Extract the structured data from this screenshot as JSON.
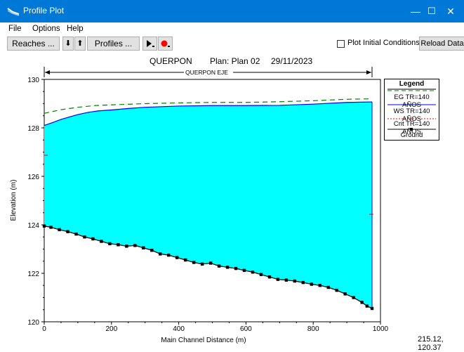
{
  "window": {
    "title": "Profile Plot",
    "minimize": "—",
    "maximize": "☐",
    "close": "✕",
    "accent": "#0078d7"
  },
  "menu": [
    "File",
    "Options",
    "Help"
  ],
  "toolbar": {
    "reaches": "Reaches ...",
    "down_arrow": "⬇",
    "up_arrow": "⬆",
    "profiles": "Profiles ...",
    "play_icon": "play-icon",
    "record_icon": "record-icon",
    "plot_initial_conditions": "Plot Initial Conditions",
    "plot_initial_conditions_checked": false,
    "reload_data": "Reload Data"
  },
  "plot": {
    "header_river": "QUERPON",
    "header_plan": "Plan: Plan 02",
    "header_date": "29/11/2023",
    "reach_label": "QUERPON EJE",
    "xlabel": "Main Channel Distance (m)",
    "ylabel": "Elevation (m)"
  },
  "legend": {
    "title": "Legend",
    "items": [
      "EG  TR=140 AÑOS",
      "WS  TR=140 AÑOS",
      "Crit  TR=140 AÑOS",
      "Ground"
    ]
  },
  "status": {
    "coordinates": "215.12, 120.37"
  },
  "chart_data": {
    "type": "area",
    "xlim": [
      0,
      1000
    ],
    "ylim": [
      120,
      130
    ],
    "xticks": [
      0,
      200,
      400,
      600,
      800,
      1000
    ],
    "yticks": [
      120,
      122,
      124,
      126,
      128,
      130
    ],
    "colors": {
      "ws_fill": "#00ffff",
      "ws_line": "#0000ff",
      "eg_line": "#008000",
      "crit_line": "#ff0000",
      "ground": "#000000"
    },
    "series": [
      {
        "name": "EG  TR=140 AÑOS",
        "style": "dashed",
        "x": [
          0,
          50,
          100,
          150,
          200,
          300,
          400,
          500,
          600,
          700,
          800,
          900,
          975
        ],
        "y": [
          128.6,
          128.75,
          128.85,
          128.92,
          128.95,
          129.0,
          129.03,
          129.05,
          129.05,
          129.08,
          129.12,
          129.18,
          129.2
        ]
      },
      {
        "name": "WS  TR=140 AÑOS",
        "style": "solid",
        "x": [
          0,
          25,
          50,
          75,
          100,
          130,
          160,
          200,
          250,
          300,
          400,
          500,
          600,
          700,
          800,
          900,
          975
        ],
        "y": [
          128.1,
          128.22,
          128.35,
          128.45,
          128.55,
          128.64,
          128.7,
          128.74,
          128.8,
          128.85,
          128.9,
          128.92,
          128.92,
          128.93,
          128.98,
          129.05,
          129.07
        ]
      },
      {
        "name": "Ground",
        "style": "solid-markers",
        "x": [
          0,
          20,
          45,
          70,
          95,
          120,
          145,
          170,
          195,
          220,
          245,
          270,
          295,
          320,
          345,
          370,
          395,
          420,
          445,
          470,
          495,
          520,
          545,
          570,
          595,
          620,
          645,
          670,
          695,
          720,
          745,
          770,
          795,
          820,
          845,
          870,
          895,
          920,
          945,
          960,
          975
        ],
        "y": [
          123.95,
          123.9,
          123.8,
          123.72,
          123.62,
          123.5,
          123.42,
          123.32,
          123.22,
          123.18,
          123.12,
          123.15,
          123.05,
          122.95,
          122.8,
          122.75,
          122.65,
          122.55,
          122.45,
          122.38,
          122.42,
          122.3,
          122.25,
          122.2,
          122.12,
          122.05,
          121.95,
          121.85,
          121.75,
          121.72,
          121.68,
          121.62,
          121.55,
          121.5,
          121.42,
          121.3,
          121.15,
          121.0,
          120.8,
          120.65,
          120.55
        ]
      }
    ]
  }
}
